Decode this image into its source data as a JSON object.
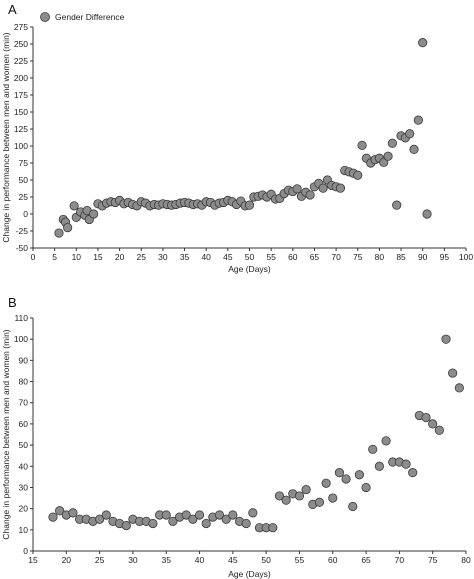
{
  "panels": {
    "a": {
      "letter": "A"
    },
    "b": {
      "letter": "B"
    }
  },
  "chart_data": [
    {
      "type": "scatter",
      "panel": "A",
      "xlabel": "Age (Days)",
      "ylabel": "Change in performance between men and women (min)",
      "xlim": [
        0,
        100
      ],
      "ylim": [
        -50,
        275
      ],
      "xticks": [
        0,
        5,
        10,
        15,
        20,
        25,
        30,
        35,
        40,
        45,
        50,
        55,
        60,
        65,
        70,
        75,
        80,
        85,
        90,
        95,
        100
      ],
      "yticks": [
        -50,
        -25,
        0,
        25,
        50,
        75,
        100,
        125,
        150,
        175,
        200,
        225,
        250,
        275
      ],
      "legend": {
        "position": "top-left",
        "entries": [
          "Gender Difference"
        ]
      },
      "grid": false,
      "series": [
        {
          "name": "Gender Difference",
          "x": [
            6,
            7,
            7.5,
            8,
            9.5,
            10,
            11,
            12,
            12.5,
            13,
            14,
            15,
            16,
            17,
            18,
            19,
            20,
            21,
            22,
            23,
            24,
            25,
            26,
            27,
            28,
            29,
            30,
            31,
            32,
            33,
            34,
            35,
            36,
            37,
            38,
            39,
            40,
            41,
            42,
            43,
            44,
            45,
            46,
            47,
            48,
            49,
            50,
            51,
            52,
            53,
            54,
            55,
            56,
            57,
            58,
            59,
            60,
            61,
            62,
            63,
            64,
            65,
            66,
            67,
            68,
            69,
            70,
            71,
            72,
            73,
            74,
            75,
            76,
            77,
            78,
            79,
            80,
            81,
            82,
            83,
            84,
            85,
            86,
            87,
            88,
            89,
            90,
            91,
            92
          ],
          "y": [
            -28,
            -8,
            -12,
            -20,
            12,
            -5,
            3,
            -2,
            5,
            -8,
            0,
            15,
            12,
            16,
            18,
            17,
            20,
            15,
            17,
            14,
            12,
            18,
            16,
            12,
            14,
            13,
            15,
            14,
            13,
            14,
            16,
            17,
            16,
            14,
            15,
            13,
            18,
            17,
            13,
            16,
            17,
            20,
            18,
            14,
            19,
            12,
            13,
            25,
            26,
            28,
            25,
            29,
            22,
            23,
            30,
            35,
            33,
            37,
            26,
            32,
            28,
            40,
            45,
            38,
            50,
            42,
            40,
            38,
            64,
            62,
            60,
            57,
            101,
            82,
            75,
            80,
            82,
            76,
            85,
            104,
            13,
            115,
            112,
            118,
            95,
            138,
            252,
            0,
            0
          ]
        }
      ]
    },
    {
      "type": "scatter",
      "panel": "B",
      "xlabel": "Age (Days)",
      "ylabel": "Change in performance between men and women (min)",
      "xlim": [
        15,
        80
      ],
      "ylim": [
        0,
        110
      ],
      "xticks": [
        15,
        20,
        25,
        30,
        35,
        40,
        45,
        50,
        55,
        60,
        65,
        70,
        75,
        80
      ],
      "yticks": [
        0,
        10,
        20,
        30,
        40,
        50,
        60,
        70,
        80,
        90,
        100,
        110
      ],
      "grid": false,
      "series": [
        {
          "name": "Gender Difference",
          "x": [
            18,
            19,
            20,
            21,
            22,
            23,
            24,
            25,
            26,
            27,
            28,
            29,
            30,
            31,
            32,
            33,
            34,
            35,
            36,
            37,
            38,
            39,
            40,
            41,
            42,
            43,
            44,
            45,
            46,
            47,
            48,
            49,
            50,
            51,
            52,
            53,
            54,
            55,
            56,
            57,
            58,
            59,
            60,
            61,
            62,
            63,
            64,
            65,
            66,
            67,
            68,
            69,
            70,
            71,
            72,
            73,
            74,
            75,
            76,
            77,
            78,
            79
          ],
          "y": [
            16,
            19,
            17,
            18,
            15,
            15,
            14,
            15,
            17,
            14,
            13,
            12,
            15,
            14,
            14,
            13,
            17,
            17,
            14,
            16,
            17,
            15,
            17,
            13,
            16,
            17,
            15,
            17,
            14,
            13,
            18,
            11,
            11,
            11,
            26,
            24,
            27,
            26,
            29,
            22,
            23,
            32,
            25,
            37,
            34,
            21,
            36,
            30,
            48,
            40,
            52,
            42,
            42,
            41,
            37,
            64,
            63,
            60,
            57,
            100,
            84,
            77
          ]
        }
      ]
    }
  ]
}
